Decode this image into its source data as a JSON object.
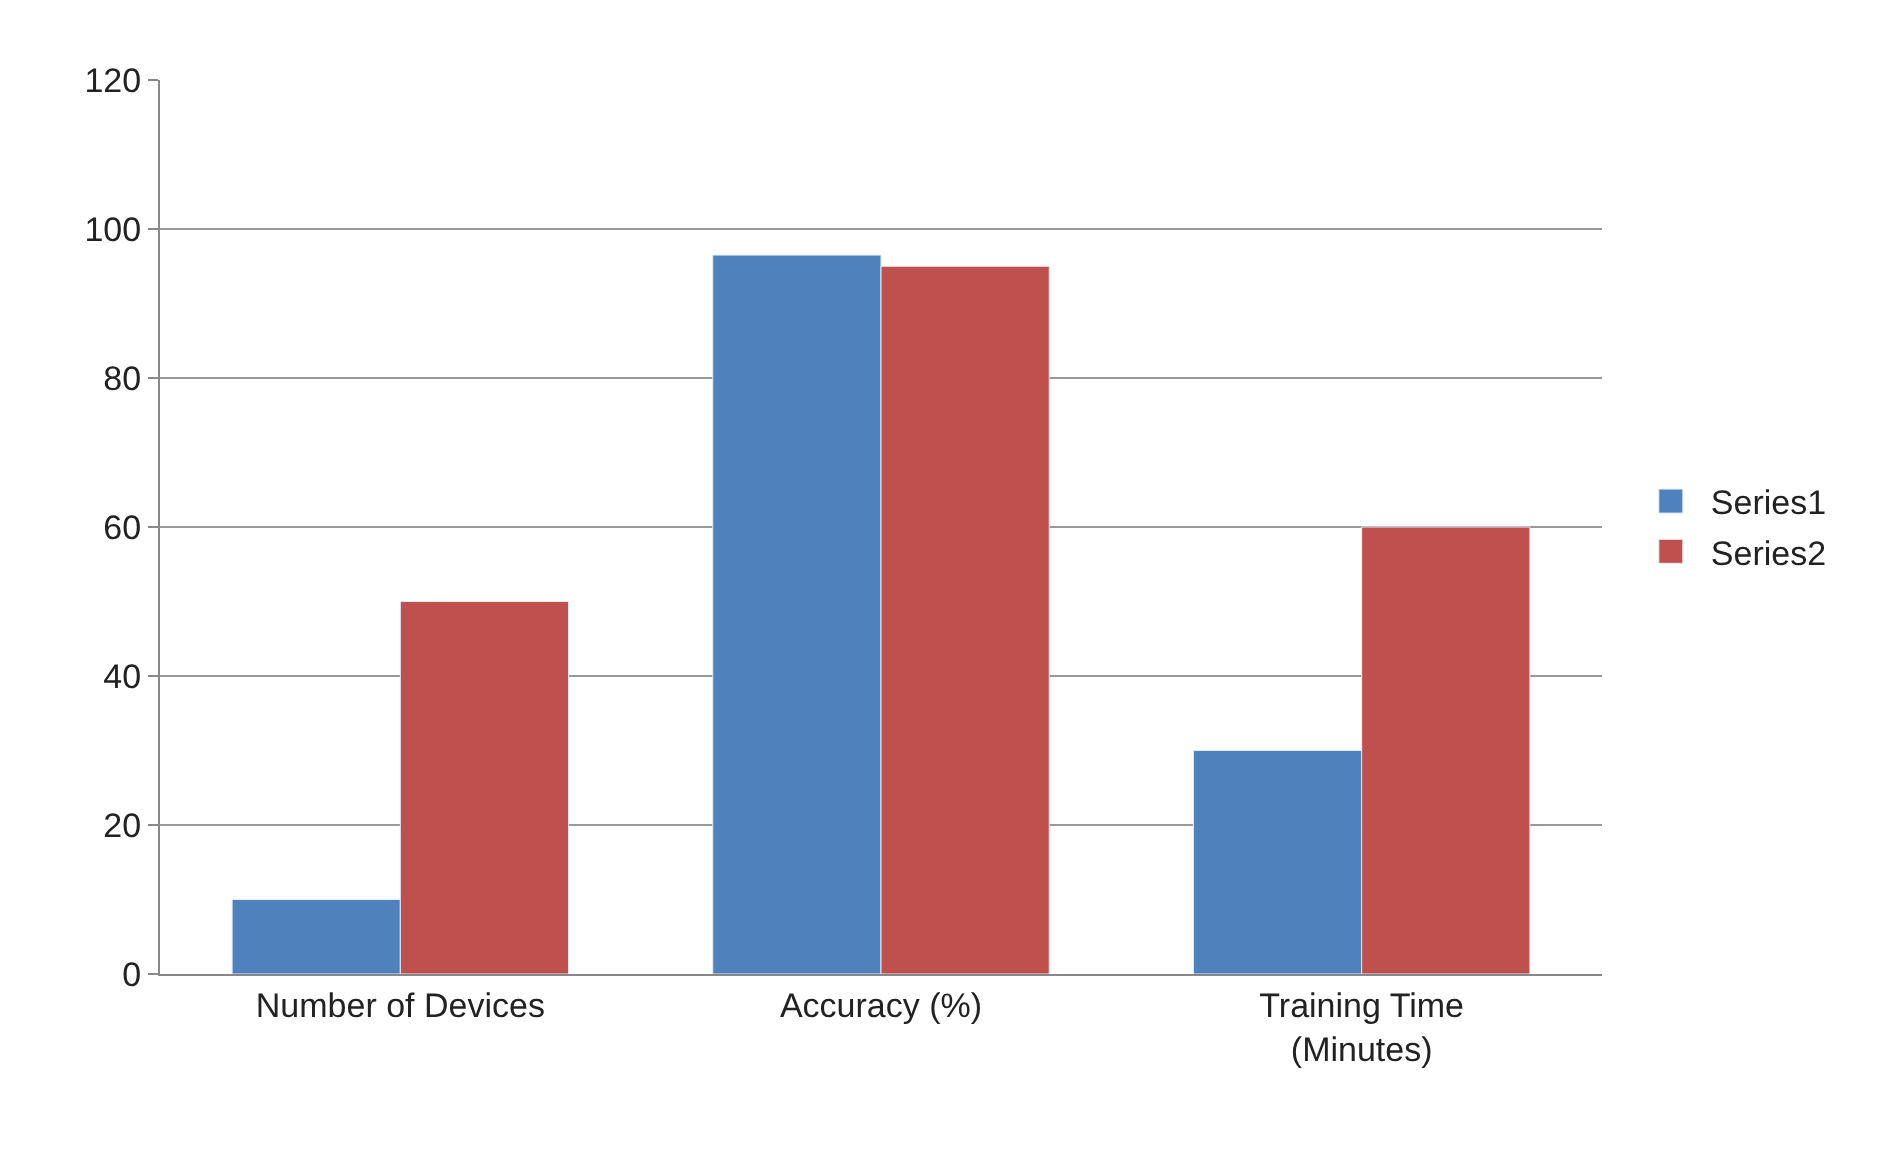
{
  "chart_data": {
    "type": "bar",
    "categories": [
      "Number of Devices",
      "Accuracy (%)",
      "Training Time\n(Minutes)"
    ],
    "series": [
      {
        "name": "Series1",
        "color": "#4f81bd",
        "values": [
          10,
          96.5,
          30
        ]
      },
      {
        "name": "Series2",
        "color": "#c0504d",
        "values": [
          50,
          95,
          60
        ]
      }
    ],
    "ylim": [
      0,
      120
    ],
    "yticks": [
      0,
      20,
      40,
      60,
      80,
      100,
      120
    ],
    "grid": "y",
    "legend": "right"
  }
}
